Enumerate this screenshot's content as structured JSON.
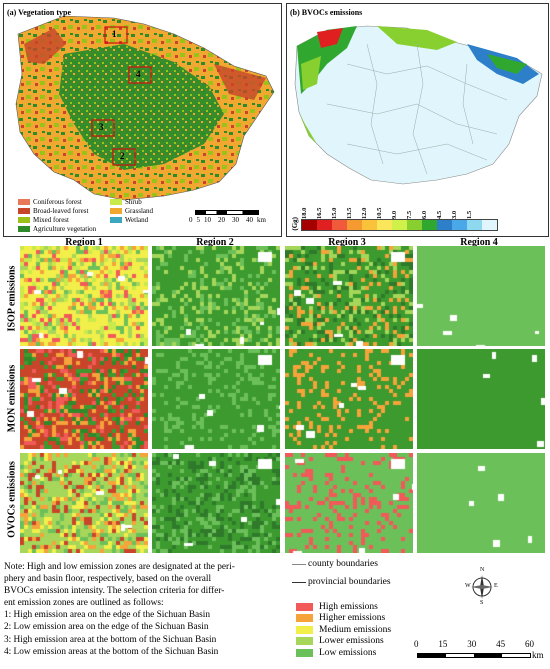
{
  "panel_a": {
    "title": "(a) Vegetation type",
    "region_markers": [
      "1",
      "4",
      "3",
      "2"
    ],
    "legend": [
      {
        "label": "Coniferous forest",
        "color": "#e8785a"
      },
      {
        "label": "Broad-leaved forest",
        "color": "#c8452a"
      },
      {
        "label": "Mixed forest",
        "color": "#9bc21a"
      },
      {
        "label": "Agriculture vegetation",
        "color": "#2f8a2a"
      },
      {
        "label": "Shrub",
        "color": "#c8ea4a"
      },
      {
        "label": "Grassland",
        "color": "#f0a830"
      },
      {
        "label": "Wetland",
        "color": "#3aa6c0"
      }
    ],
    "scale_ticks": [
      "0",
      "5",
      "10",
      "20",
      "30",
      "40"
    ],
    "scale_unit": "km"
  },
  "panel_b": {
    "title": "(b) BVOCs emissions",
    "unit": "(Gg)",
    "legend_values": [
      "18.0",
      "16.5",
      "15.0",
      "13.5",
      "12.0",
      "10.5",
      "9.0",
      "7.5",
      "6.0",
      "4.5",
      "3.0",
      "1.5"
    ],
    "legend_colors": [
      "#a50000",
      "#e02020",
      "#f05a3a",
      "#f59a30",
      "#fac23a",
      "#fae65a",
      "#d0f04a",
      "#88d030",
      "#30a830",
      "#2c7fc8",
      "#4aa8e8",
      "#8ed8f0",
      "#e0f6fc"
    ]
  },
  "grid": {
    "regions": [
      "Region 1",
      "Region 2",
      "Region 3",
      "Region 4"
    ],
    "rows": [
      "ISOP emissions",
      "MON emissions",
      "OVOCs emissions"
    ]
  },
  "note": {
    "lines": [
      "Note: High and low emission zones are designated at the peri-",
      "phery and basin floor, respectively, based on the overall",
      "BVOCs emission intensity. The selection criteria for differ-",
      "ent emission zones are outlined as follows:",
      "1: High emission area on the edge of the Sichuan Basin",
      "2: Low emission area on the edge of the Sichuan Basin",
      "3: High emission area at the bottom of the Sichuan Basin",
      "4: Low emission areas at the bottom of the Sichuan Basin"
    ]
  },
  "boundaries": {
    "county": "county boundaries",
    "provincial": "provincial boundaries"
  },
  "compass": {
    "n": "N",
    "s": "S",
    "e": "E",
    "w": "W"
  },
  "emission_legend": [
    {
      "label": "High emissions",
      "color": "#f25a5a"
    },
    {
      "label": "Higher emissions",
      "color": "#f5a33a"
    },
    {
      "label": "Medium emissions",
      "color": "#f2ee4a"
    },
    {
      "label": "Lower emissions",
      "color": "#a6d65a"
    },
    {
      "label": "Low emissions",
      "color": "#6cc05a"
    }
  ],
  "scale_bar": {
    "ticks": [
      "0",
      "15",
      "30",
      "45",
      "60"
    ],
    "unit": "km"
  }
}
